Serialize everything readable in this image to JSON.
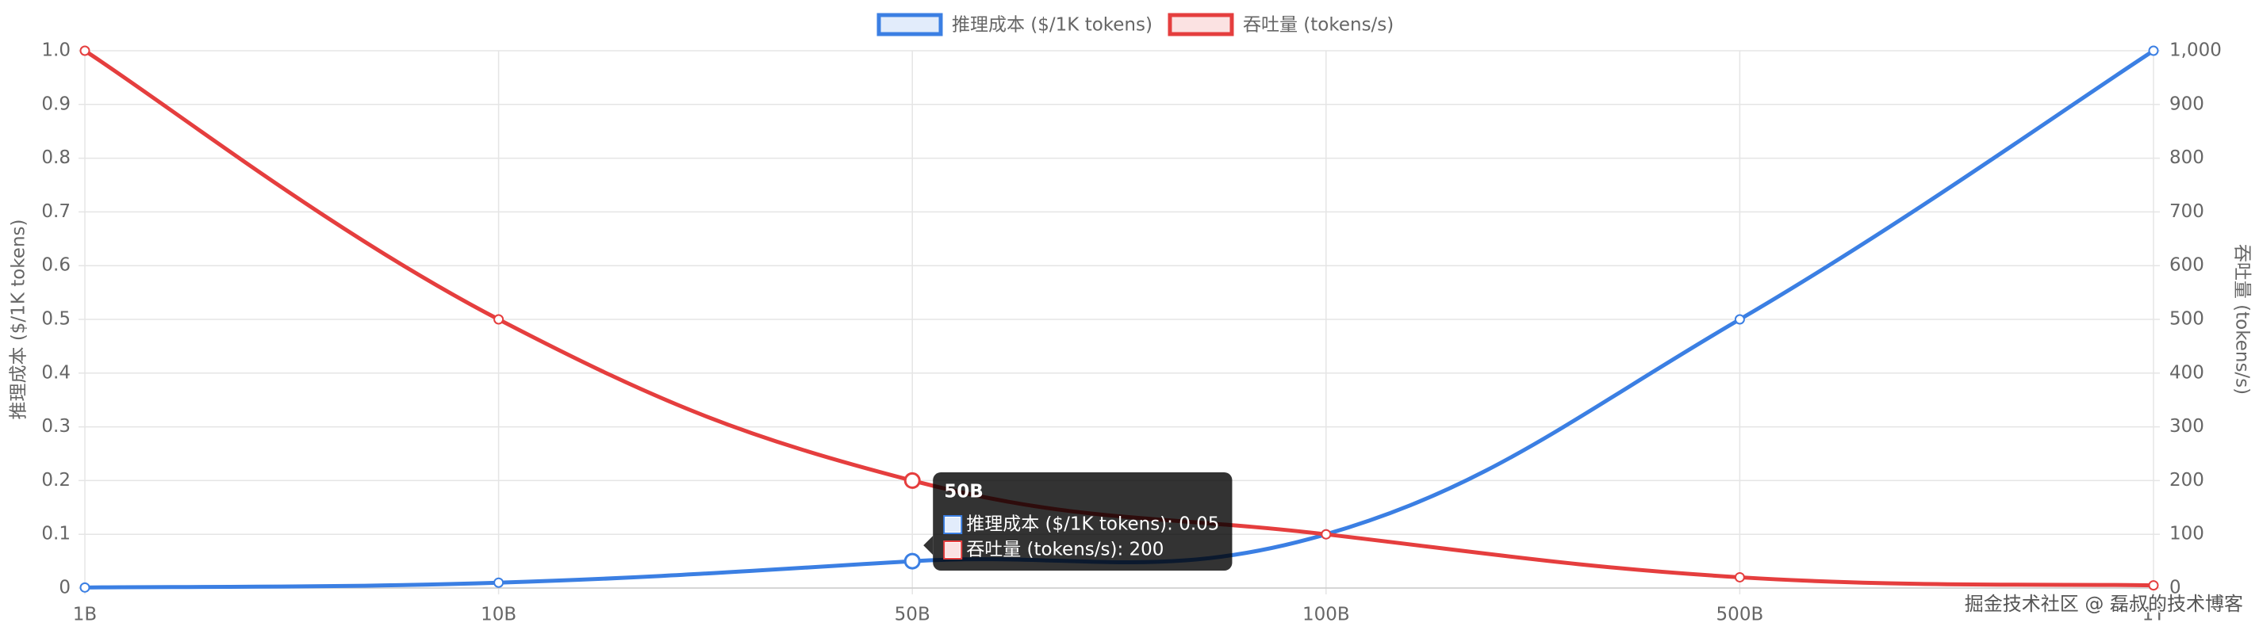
{
  "chart_data": {
    "type": "line",
    "categories": [
      "1B",
      "10B",
      "50B",
      "100B",
      "500B",
      "1T"
    ],
    "series": [
      {
        "name": "推理成本 ($/1K tokens)",
        "color": "#3b7fe3",
        "values": [
          0.001,
          0.01,
          0.05,
          0.1,
          0.5,
          1.0
        ]
      },
      {
        "name": "吞吐量 (tokens/s)",
        "color": "#e53e3e",
        "axis": "y2",
        "values": [
          1000,
          500,
          200,
          100,
          20,
          5
        ]
      }
    ],
    "ylabel": "推理成本 ($/1K tokens)",
    "y2label": "吞吐量 (tokens/s)",
    "ylim": [
      0,
      1
    ],
    "yticks": [
      0,
      0.1,
      0.2,
      0.3,
      0.4,
      0.5,
      0.6,
      0.7,
      0.8,
      0.9,
      {
        "value": 1,
        "label": "1.0"
      }
    ],
    "y2lim": [
      0,
      1000
    ],
    "y2ticks": [
      0,
      100,
      200,
      300,
      400,
      500,
      600,
      700,
      800,
      900,
      {
        "value": 1000,
        "label": "1,000"
      }
    ],
    "grid": true,
    "legend": "top",
    "tooltip": {
      "category": 2,
      "title": "50B",
      "lines": [
        "推理成本 ($/1K tokens): 0.05",
        "吞吐量 (tokens/s): 200"
      ]
    },
    "watermark": "掘金技术社区 @ 磊叔的技术博客"
  }
}
